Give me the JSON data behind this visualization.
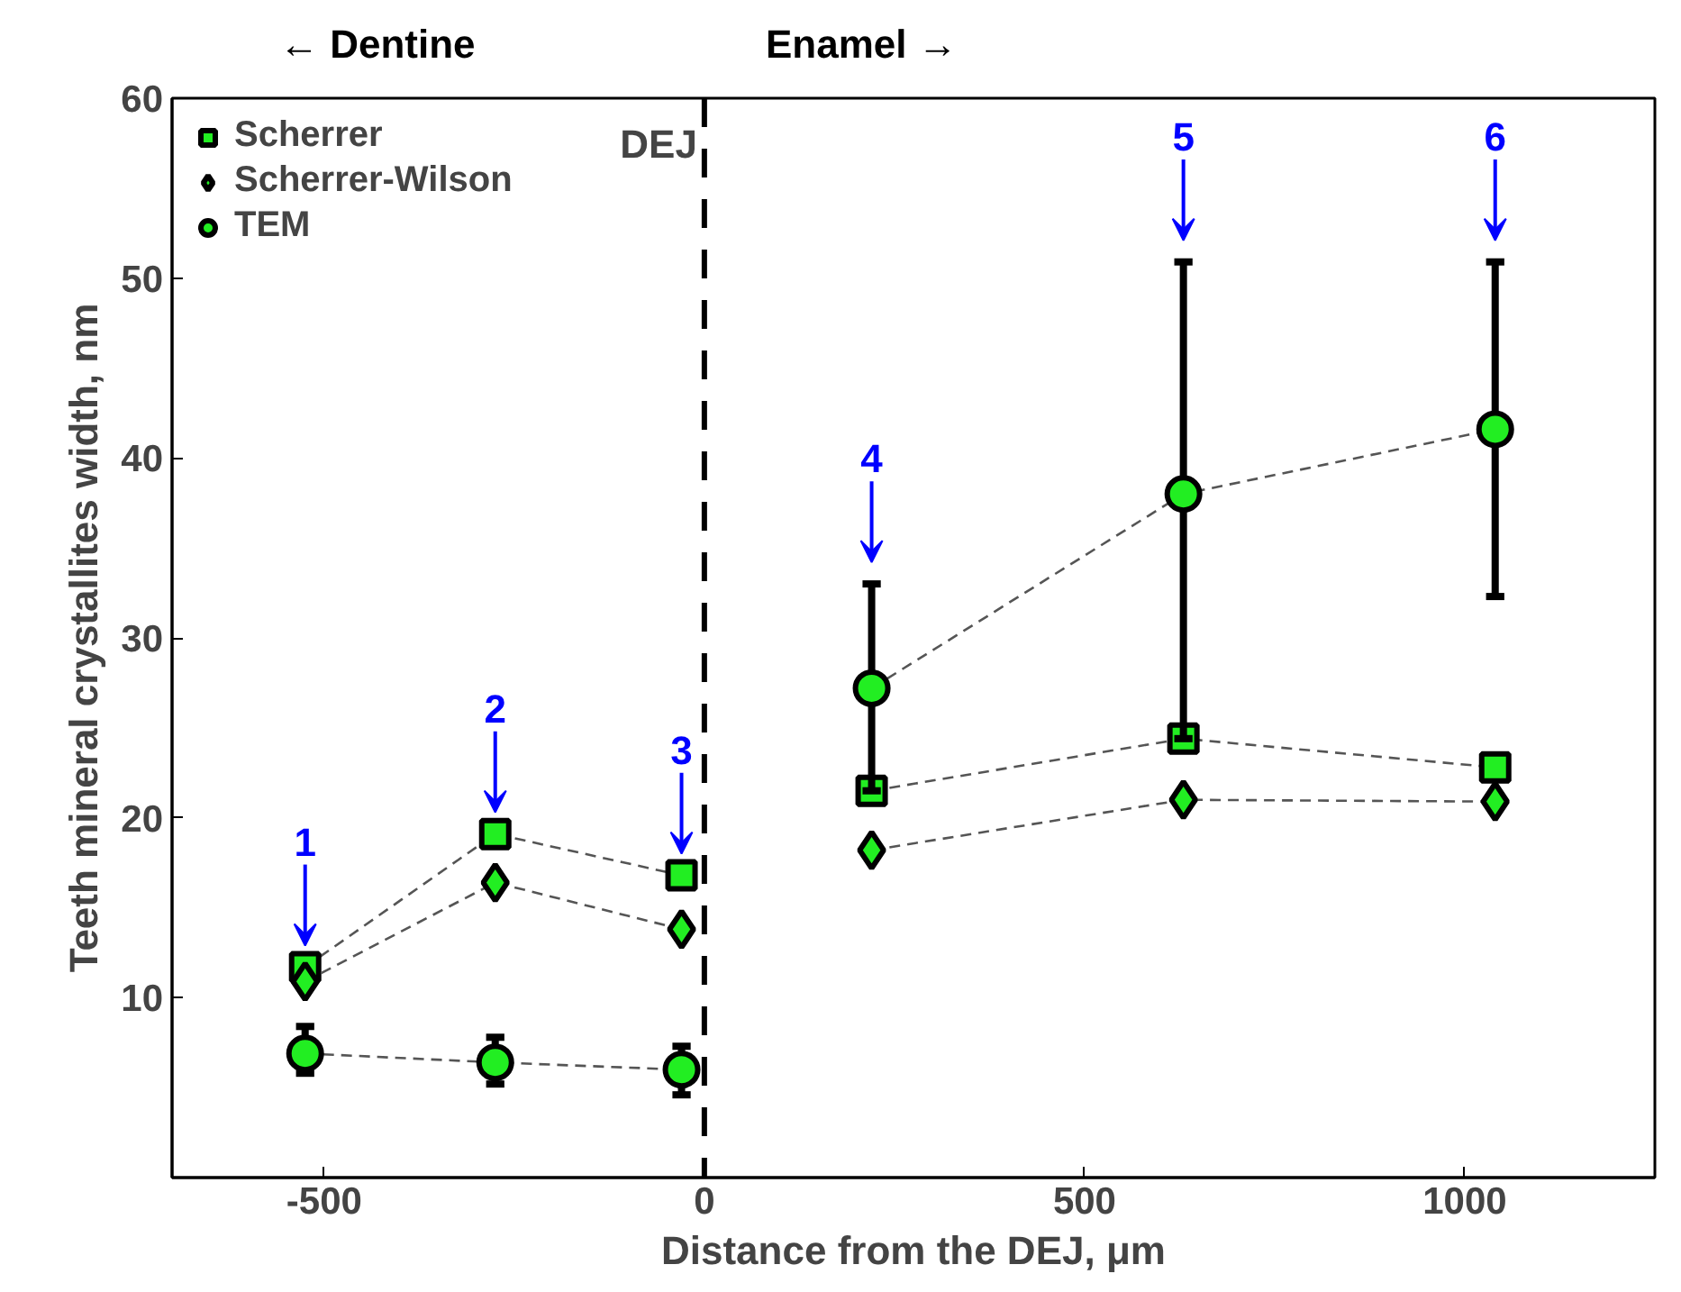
{
  "chart_data": {
    "type": "line",
    "xlabel": "Distance from the DEJ, μm",
    "ylabel": "Teeth mineral crystallites width, nm",
    "x": [
      -525,
      -275,
      -30,
      0,
      220,
      630,
      1040
    ],
    "xlim": [
      -700,
      1250
    ],
    "xticks": [
      -500,
      0,
      500,
      1000
    ],
    "ylim": [
      0,
      60
    ],
    "yticks": [
      10,
      20,
      30,
      40,
      50,
      60
    ],
    "grid": false,
    "legend": "top left",
    "line_style": "dashed",
    "series": [
      {
        "name": "Scherrer",
        "color": "#22ee22",
        "marker": "square",
        "values": [
          11.7,
          19.1,
          16.8,
          null,
          21.5,
          24.4,
          22.8
        ]
      },
      {
        "name": "Scherrer-Wilson",
        "color": "#22ee22",
        "marker": "diamond",
        "values": [
          10.9,
          16.4,
          13.8,
          null,
          18.2,
          21.0,
          20.9
        ]
      },
      {
        "name": "TEM",
        "color": "#22ee22",
        "marker": "circle",
        "values": [
          6.9,
          6.4,
          6.0,
          null,
          27.2,
          38.0,
          41.6
        ],
        "errors": [
          [
            5.8,
            8.4
          ],
          [
            5.2,
            7.8
          ],
          [
            4.6,
            7.3
          ],
          null,
          [
            21.5,
            33.0
          ],
          [
            24.4,
            50.9
          ],
          [
            32.3,
            50.9
          ]
        ]
      }
    ],
    "ref_lines": [
      {
        "axis": "x",
        "value": 0,
        "label": "DEJ",
        "color": "#000000",
        "line_style": "dashed"
      }
    ],
    "annotations": [
      {
        "text": "1",
        "x": -525,
        "y": 11.7
      },
      {
        "text": "2",
        "x": -275,
        "y": 19.1
      },
      {
        "text": "3",
        "x": -30,
        "y": 16.8
      },
      {
        "text": "4",
        "x": 220,
        "y": 33.0
      },
      {
        "text": "5",
        "x": 630,
        "y": 50.9
      },
      {
        "text": "6",
        "x": 1040,
        "y": 50.9
      },
      "← Dentine",
      "Enamel →"
    ]
  }
}
